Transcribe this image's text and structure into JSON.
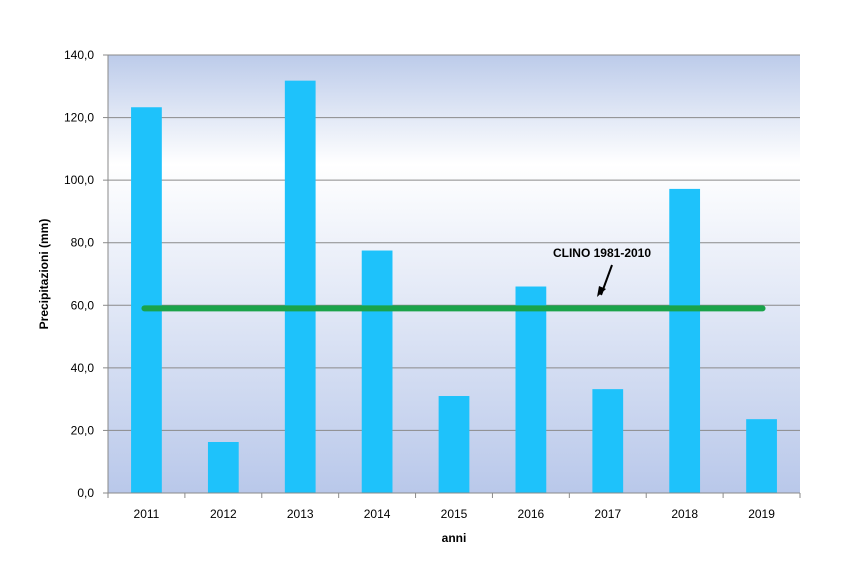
{
  "chart_data": {
    "type": "bar",
    "categories": [
      "2011",
      "2012",
      "2013",
      "2014",
      "2015",
      "2016",
      "2017",
      "2018",
      "2019"
    ],
    "values": [
      123.3,
      16.3,
      131.8,
      77.5,
      31.0,
      66.0,
      33.2,
      97.2,
      23.6
    ],
    "reference_line": {
      "label": "CLINO 1981-2010",
      "value": 59.0,
      "color": "#1aa34a"
    },
    "bar_color": "#1ec2fb",
    "title": "",
    "xlabel": "anni",
    "ylabel": "Precipitazioni (mm)",
    "ylim": [
      0,
      140
    ],
    "yticks": [
      "0,0",
      "20,0",
      "40,0",
      "60,0",
      "80,0",
      "100,0",
      "120,0",
      "140,0"
    ],
    "grid": true,
    "legend": "none"
  }
}
